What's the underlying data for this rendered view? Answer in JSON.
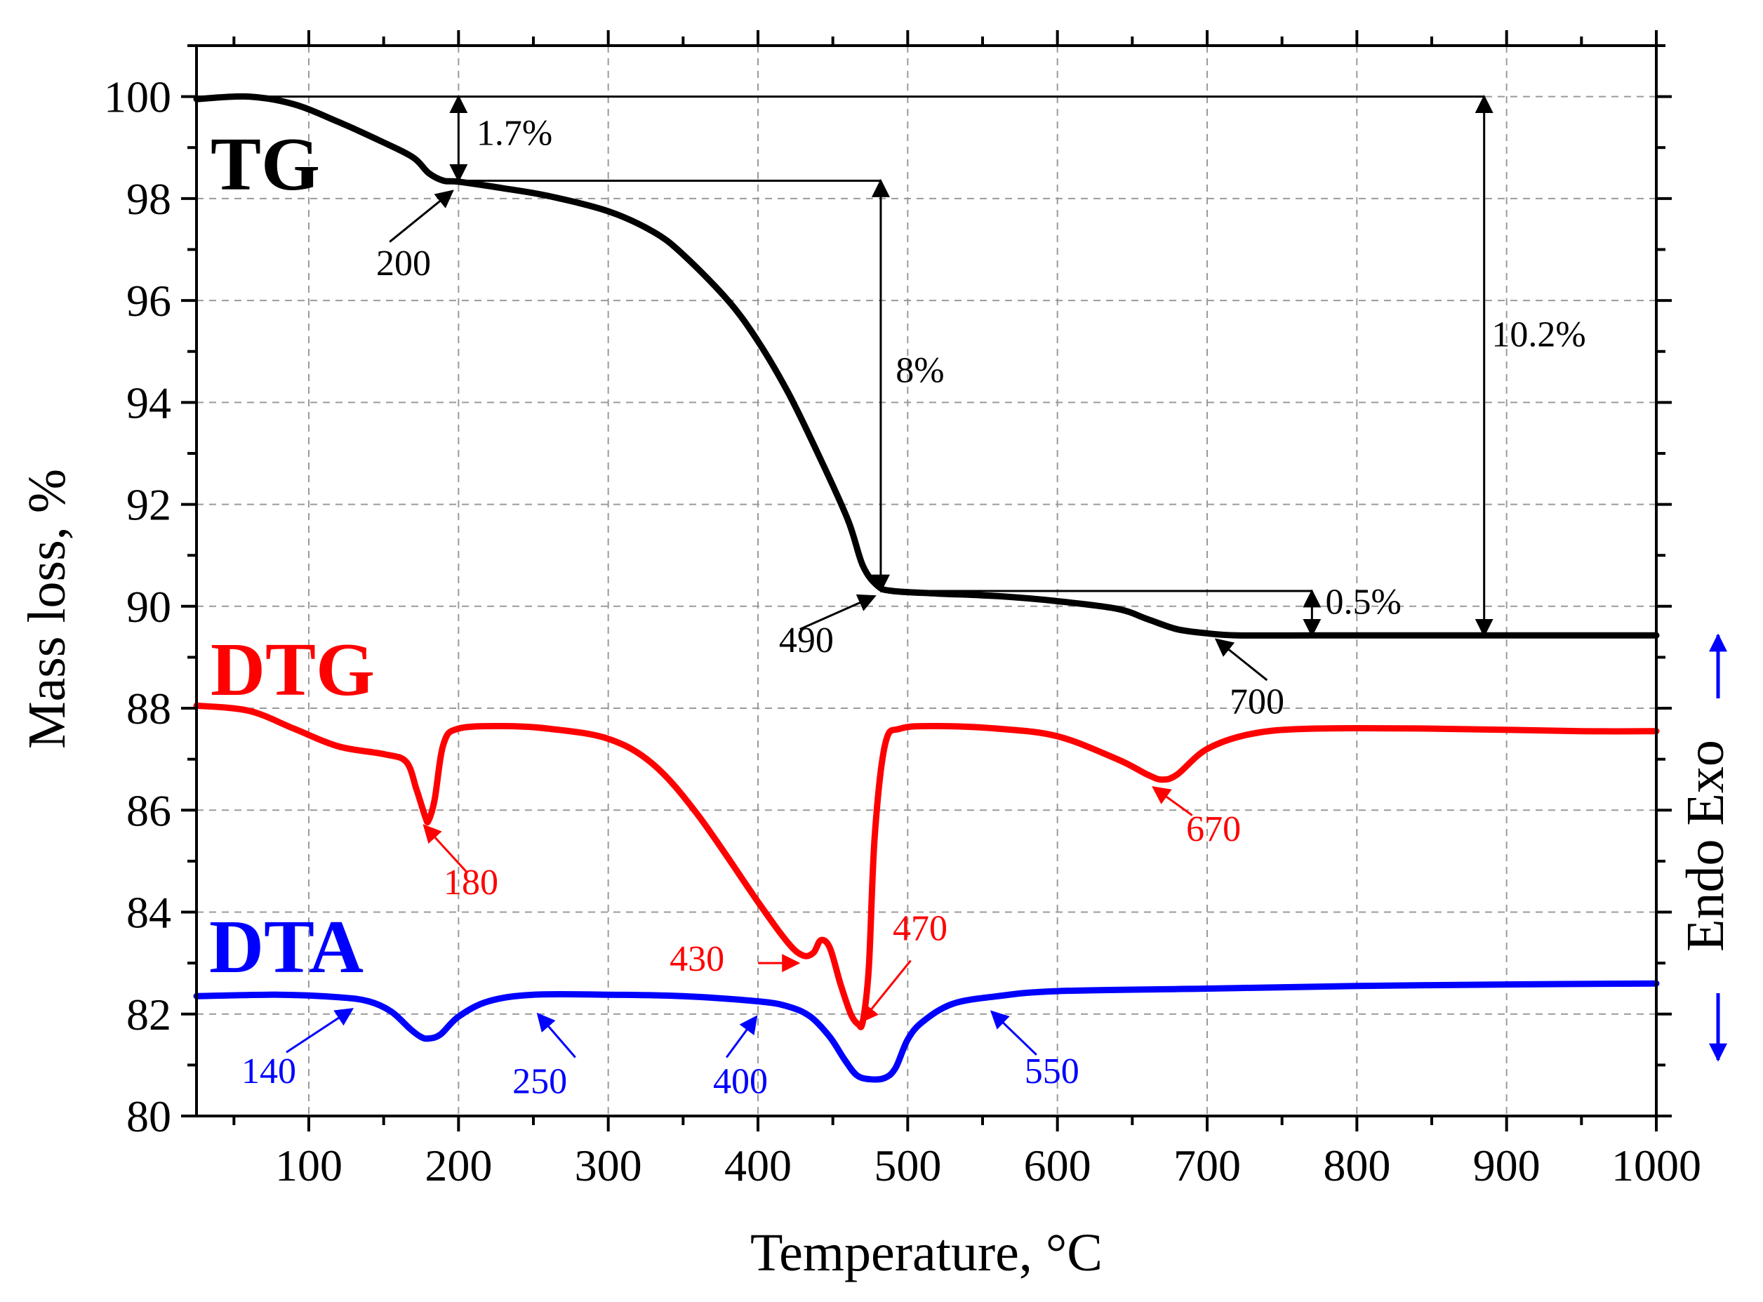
{
  "chart_data": {
    "type": "line",
    "xlabel": "Temperature, °C",
    "ylabel": "Mass loss, %",
    "xlim": [
      25,
      1000
    ],
    "ylim": [
      80,
      101
    ],
    "x_ticks": [
      100,
      200,
      300,
      400,
      500,
      600,
      700,
      800,
      900,
      1000
    ],
    "y_ticks": [
      80,
      82,
      84,
      86,
      88,
      90,
      92,
      94,
      96,
      98,
      100
    ],
    "grid": true,
    "colors": {
      "TG": "#000000",
      "DTG": "#ff0000",
      "DTA": "#0000ff"
    },
    "series": [
      {
        "name": "TG",
        "label": "TG",
        "color": "#000000",
        "x": [
          25,
          60,
          90,
          120,
          150,
          170,
          180,
          190,
          200,
          230,
          260,
          300,
          330,
          350,
          380,
          400,
          420,
          440,
          460,
          470,
          480,
          490,
          520,
          560,
          600,
          640,
          660,
          680,
          700,
          720,
          770,
          850,
          1000
        ],
        "y": [
          99.95,
          100.0,
          99.85,
          99.5,
          99.1,
          98.8,
          98.5,
          98.35,
          98.33,
          98.2,
          98.05,
          97.75,
          97.35,
          96.9,
          96.0,
          95.2,
          94.2,
          93.0,
          91.7,
          90.8,
          90.4,
          90.3,
          90.25,
          90.2,
          90.1,
          89.95,
          89.75,
          89.55,
          89.47,
          89.43,
          89.43,
          89.43,
          89.43
        ]
      },
      {
        "name": "DTG",
        "label": "DTG",
        "color": "#ff0000",
        "x": [
          25,
          60,
          90,
          120,
          150,
          165,
          172,
          178,
          180,
          184,
          190,
          200,
          230,
          260,
          300,
          330,
          360,
          400,
          420,
          430,
          437,
          442,
          448,
          455,
          462,
          467,
          470,
          474,
          478,
          485,
          495,
          520,
          560,
          600,
          640,
          660,
          670,
          680,
          700,
          730,
          770,
          850,
          950,
          1000
        ],
        "y": [
          88.05,
          87.95,
          87.6,
          87.25,
          87.1,
          86.95,
          86.4,
          85.85,
          85.8,
          86.2,
          87.3,
          87.6,
          87.65,
          87.6,
          87.4,
          86.9,
          85.9,
          84.2,
          83.4,
          83.15,
          83.2,
          83.45,
          83.3,
          82.6,
          82.0,
          81.8,
          81.85,
          82.9,
          85.5,
          87.3,
          87.6,
          87.65,
          87.6,
          87.45,
          87.0,
          86.7,
          86.6,
          86.7,
          87.2,
          87.5,
          87.6,
          87.6,
          87.55,
          87.55
        ]
      },
      {
        "name": "DTA",
        "label": "DTA",
        "color": "#0000ff",
        "x": [
          25,
          80,
          120,
          140,
          155,
          168,
          175,
          180,
          188,
          200,
          220,
          250,
          300,
          350,
          400,
          420,
          435,
          448,
          458,
          466,
          475,
          485,
          492,
          500,
          510,
          530,
          560,
          600,
          700,
          800,
          900,
          1000
        ],
        "y": [
          82.35,
          82.38,
          82.33,
          82.25,
          82.05,
          81.7,
          81.55,
          81.52,
          81.6,
          81.95,
          82.25,
          82.38,
          82.38,
          82.35,
          82.25,
          82.15,
          81.95,
          81.55,
          81.1,
          80.8,
          80.72,
          80.75,
          80.95,
          81.5,
          81.85,
          82.2,
          82.35,
          82.45,
          82.5,
          82.55,
          82.58,
          82.6
        ]
      }
    ],
    "annotations": [
      {
        "text": "1.7%",
        "color": "#000000"
      },
      {
        "text": "8%",
        "color": "#000000"
      },
      {
        "text": "10.2%",
        "color": "#000000"
      },
      {
        "text": "0.5%",
        "color": "#000000"
      },
      {
        "text": "200",
        "color": "#000000"
      },
      {
        "text": "490",
        "color": "#000000"
      },
      {
        "text": "700",
        "color": "#000000"
      },
      {
        "text": "180",
        "color": "#ff0000"
      },
      {
        "text": "430",
        "color": "#ff0000"
      },
      {
        "text": "470",
        "color": "#ff0000"
      },
      {
        "text": "670",
        "color": "#ff0000"
      },
      {
        "text": "140",
        "color": "#0000ff"
      },
      {
        "text": "250",
        "color": "#0000ff"
      },
      {
        "text": "400",
        "color": "#0000ff"
      },
      {
        "text": "550",
        "color": "#0000ff"
      }
    ],
    "side_label": {
      "text": "Endo Exo",
      "color": "#0000ff"
    }
  }
}
